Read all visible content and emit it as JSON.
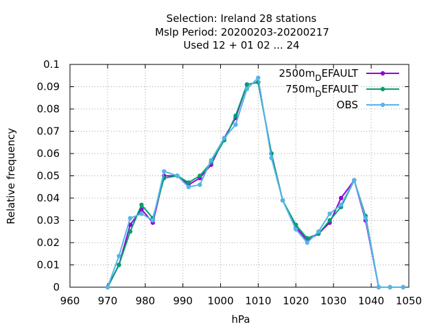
{
  "chart_data": {
    "type": "line",
    "title_lines": [
      "Selection: Ireland      28 stations",
      "Mslp  Period: 20200203-20200217",
      "Used  12 + 01 02 ... 24"
    ],
    "xlabel": "hPa",
    "ylabel": "Relative frequency",
    "xlim": [
      960,
      1050
    ],
    "ylim": [
      0,
      0.1
    ],
    "xticks": [
      "960",
      "970",
      "980",
      "990",
      "1000",
      "1010",
      "1020",
      "1030",
      "1040",
      "1050"
    ],
    "yticks": [
      "0",
      "0.01",
      "0.02",
      "0.03",
      "0.04",
      "0.05",
      "0.06",
      "0.07",
      "0.08",
      "0.09",
      "0.1"
    ],
    "grid": true,
    "legend_position": "top-right",
    "x": [
      970,
      973,
      976,
      979,
      982,
      985,
      988.5,
      991.5,
      994.5,
      997.5,
      1001,
      1004,
      1007,
      1010,
      1013.5,
      1016.5,
      1020,
      1023,
      1026,
      1029,
      1032,
      1035.5,
      1038.5,
      1042,
      1045,
      1048.5
    ],
    "series": [
      {
        "name": "2500m_DEFAULT",
        "label_main": "2500m",
        "label_sub": "D",
        "label_tail": "EFAULT",
        "color": "#9400d3",
        "values": [
          0.0,
          0.01,
          0.028,
          0.035,
          0.029,
          0.05,
          0.05,
          0.046,
          0.049,
          0.055,
          0.067,
          0.076,
          0.091,
          0.092,
          0.06,
          0.039,
          0.027,
          0.021,
          0.024,
          0.029,
          0.04,
          0.048,
          0.03,
          0.0,
          0.0,
          0.0
        ]
      },
      {
        "name": "750m_DEFAULT",
        "label_main": "750m",
        "label_sub": "D",
        "label_tail": "EFAULT",
        "color": "#009e73",
        "values": [
          0.0,
          0.01,
          0.025,
          0.037,
          0.031,
          0.049,
          0.05,
          0.047,
          0.05,
          0.056,
          0.066,
          0.077,
          0.091,
          0.092,
          0.06,
          0.039,
          0.028,
          0.022,
          0.024,
          0.03,
          0.036,
          0.048,
          0.032,
          0.0,
          0.0,
          0.0
        ]
      },
      {
        "name": "OBS",
        "label_main": "OBS",
        "label_sub": "",
        "label_tail": "",
        "color": "#56b4e9",
        "values": [
          0.0,
          0.014,
          0.031,
          0.033,
          0.03,
          0.052,
          0.05,
          0.045,
          0.046,
          0.057,
          0.067,
          0.073,
          0.089,
          0.094,
          0.058,
          0.039,
          0.026,
          0.02,
          0.025,
          0.033,
          0.037,
          0.048,
          0.031,
          0.0,
          0.0,
          0.0
        ]
      }
    ]
  }
}
